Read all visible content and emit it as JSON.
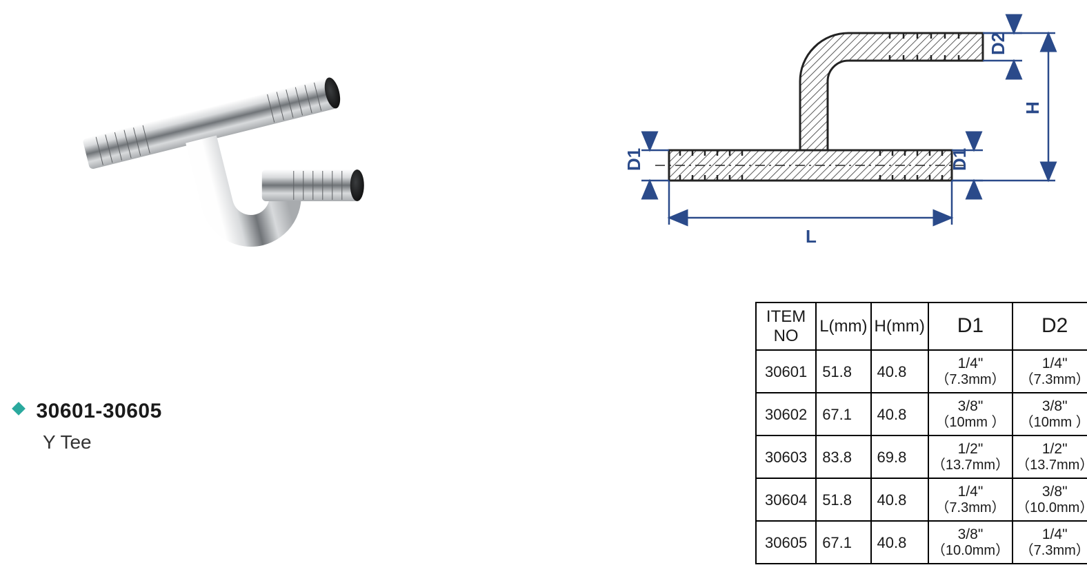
{
  "title": {
    "range": "30601-30605",
    "name": "Y Tee",
    "bullet_color": "#2aa99e"
  },
  "drawing": {
    "labels": {
      "L": "L",
      "H": "H",
      "D1_left": "D1",
      "D1_right": "D1",
      "D2": "D2"
    },
    "line_color": "#2a4a8a"
  },
  "table": {
    "columns": [
      "ITEM NO",
      "L(mm)",
      "H(mm)",
      "D1",
      "D2"
    ],
    "rows": [
      {
        "item": "30601",
        "L": "51.8",
        "H": "40.8",
        "D1_inch": "1/4\"",
        "D1_mm": "（7.3mm）",
        "D2_inch": "1/4\"",
        "D2_mm": "（7.3mm）"
      },
      {
        "item": "30602",
        "L": "67.1",
        "H": "40.8",
        "D1_inch": "3/8\"",
        "D1_mm": "（10mm ）",
        "D2_inch": "3/8\"",
        "D2_mm": "（10mm ）"
      },
      {
        "item": "30603",
        "L": "83.8",
        "H": "69.8",
        "D1_inch": "1/2\"",
        "D1_mm": "（13.7mm）",
        "D2_inch": "1/2\"",
        "D2_mm": "（13.7mm）"
      },
      {
        "item": "30604",
        "L": "51.8",
        "H": "40.8",
        "D1_inch": "1/4\"",
        "D1_mm": "（7.3mm）",
        "D2_inch": "3/8\"",
        "D2_mm": "（10.0mm）"
      },
      {
        "item": "30605",
        "L": "67.1",
        "H": "40.8",
        "D1_inch": "3/8\"",
        "D1_mm": "（10.0mm）",
        "D2_inch": "1/4\"",
        "D2_mm": "（7.3mm）"
      }
    ],
    "border_color": "#000000",
    "header_fontsize": 24,
    "cell_fontsize": 21
  },
  "colors": {
    "bg": "#ffffff",
    "text": "#1a1a1a",
    "dim_blue": "#2a4a8a",
    "accent": "#2aa99e"
  }
}
